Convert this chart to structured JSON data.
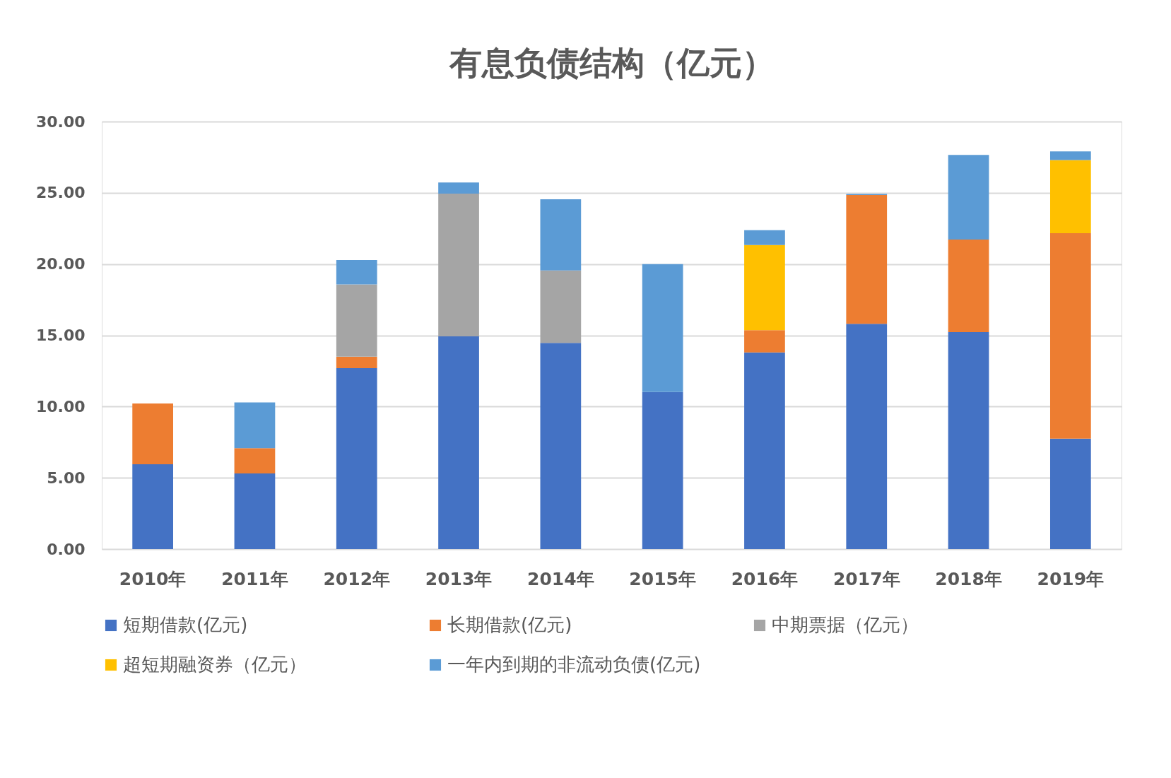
{
  "chart_data": {
    "type": "bar",
    "title": "有息负债结构（亿元）",
    "categories": [
      "2010年",
      "2011年",
      "2012年",
      "2013年",
      "2014年",
      "2015年",
      "2016年",
      "2017年",
      "2018年",
      "2019年"
    ],
    "stacked": true,
    "series": [
      {
        "name": "短期借款(亿元)",
        "color": "#4472c4",
        "values": [
          5.95,
          5.3,
          12.69,
          14.92,
          14.47,
          11.02,
          13.8,
          15.81,
          15.22,
          7.75
        ]
      },
      {
        "name": "长期借款(亿元)",
        "color": "#ed7d31",
        "values": [
          4.26,
          1.78,
          0.81,
          null,
          null,
          null,
          1.56,
          9.03,
          6.5,
          14.41
        ]
      },
      {
        "name": "中期票据（亿元）",
        "color": "#a5a5a5",
        "values": [
          null,
          null,
          5.07,
          10.02,
          5.08,
          null,
          null,
          null,
          null,
          null
        ]
      },
      {
        "name": "超短期融资券（亿元）",
        "color": "#ffc000",
        "values": [
          null,
          null,
          null,
          null,
          null,
          null,
          5.97,
          null,
          null,
          5.14
        ]
      },
      {
        "name": "一年内到期的非流动负债(亿元)",
        "color": "#5b9bd5",
        "values": [
          null,
          3.21,
          1.71,
          0.78,
          4.99,
          8.97,
          1.04,
          0.08,
          5.94,
          0.61
        ]
      }
    ],
    "ylim": [
      0,
      30
    ],
    "yticks": [
      {
        "value": 0,
        "label": "0.00"
      },
      {
        "value": 5,
        "label": "5.00"
      },
      {
        "value": 10,
        "label": "10.00"
      },
      {
        "value": 15,
        "label": "15.00"
      },
      {
        "value": 20,
        "label": "20.00"
      },
      {
        "value": 25,
        "label": "25.00"
      },
      {
        "value": 30,
        "label": "30.00"
      }
    ],
    "grid": "y",
    "legend": "bottom"
  }
}
